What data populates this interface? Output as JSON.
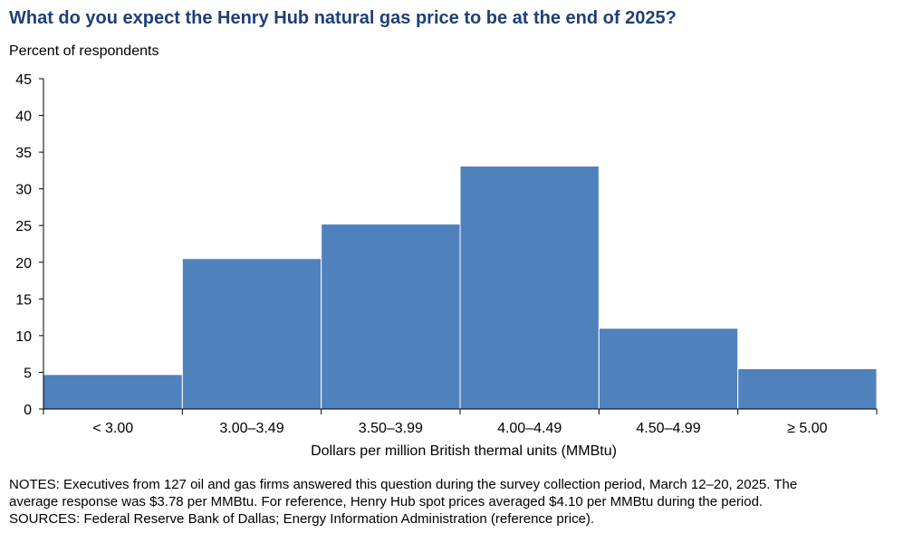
{
  "chart_data": {
    "type": "bar",
    "title": "What do you expect the Henry Hub natural gas price to be at the end of 2025?",
    "ylabel": "Percent of respondents",
    "xlabel": "Dollars per million British thermal units (MMBtu)",
    "categories": [
      "< 3.00",
      "3.00–3.49",
      "3.50–3.99",
      "4.00–4.49",
      "4.50–4.99",
      "≥ 5.00"
    ],
    "values": [
      4.7,
      20.5,
      25.2,
      33.1,
      11.0,
      5.5
    ],
    "ylim": [
      0,
      45
    ],
    "yticks": [
      0,
      5,
      10,
      15,
      20,
      25,
      30,
      35,
      40,
      45
    ],
    "bar_color": "#4f81bd",
    "grid": false,
    "legend": "none"
  },
  "notes": {
    "line1": "NOTES: Executives from 127 oil and gas firms answered this question during the survey collection period, March 12–20, 2025. The",
    "line2": "average response was $3.78 per MMBtu. For reference, Henry Hub spot prices averaged $4.10 per MMBtu during the period.",
    "line3": "SOURCES: Federal Reserve Bank of Dallas; Energy Information Administration (reference price)."
  }
}
